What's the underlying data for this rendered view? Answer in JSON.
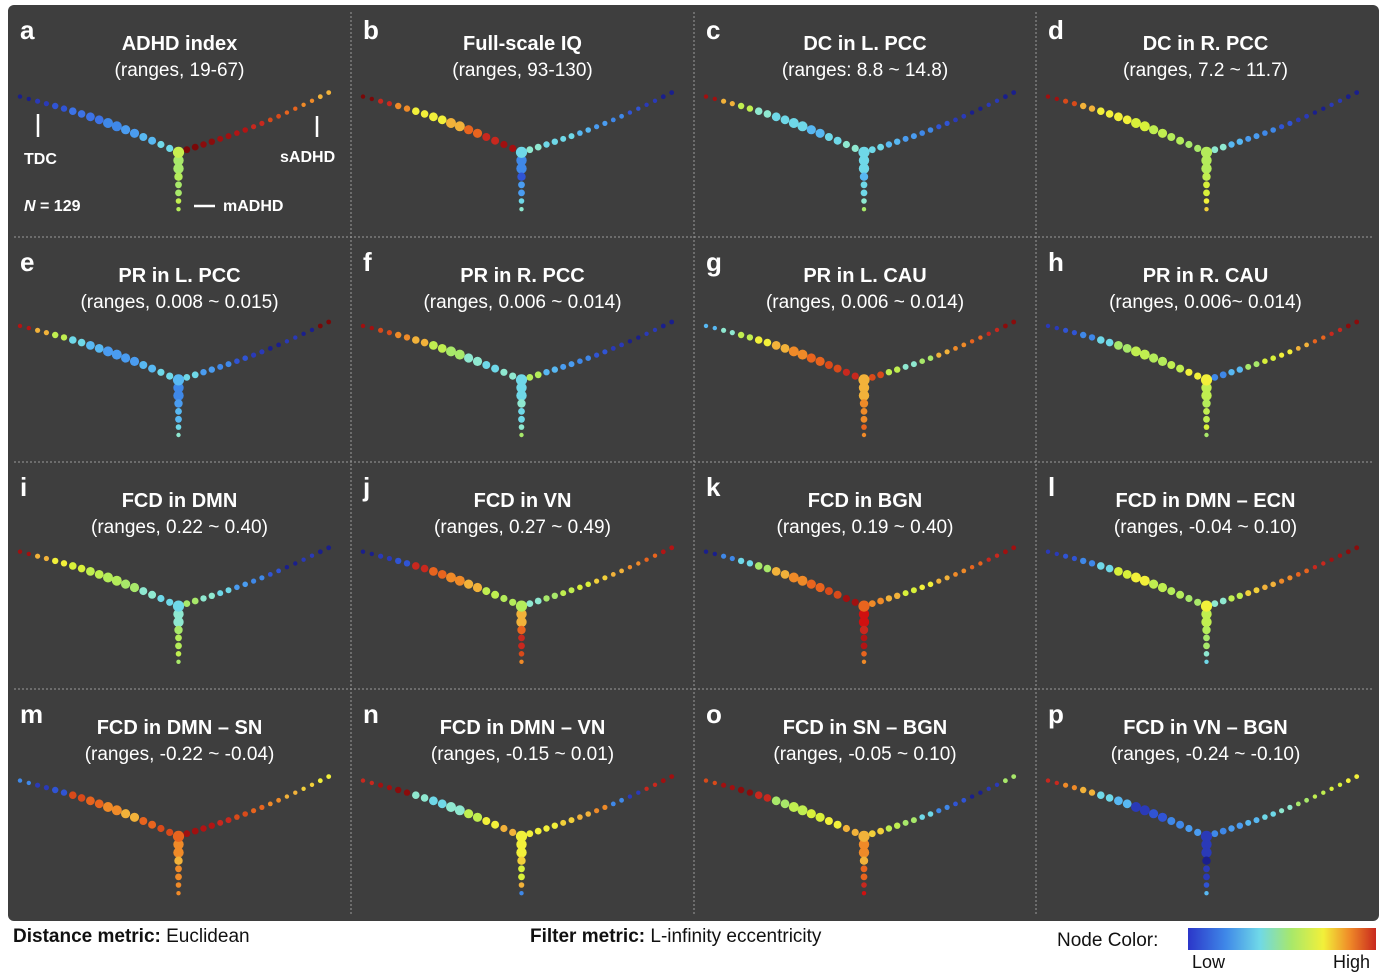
{
  "panels": [
    {
      "letter": "a",
      "title": "ADHD index",
      "subtitle": "(ranges, 19-67)",
      "left": [
        "#1a1f8c",
        "#2a3ab8",
        "#3054d4",
        "#3d73e6",
        "#3d73e6",
        "#3f88e8",
        "#4a9cf0",
        "#58b8f2",
        "#6fd8e8"
      ],
      "right": [
        "#f2b23a",
        "#ef8a28",
        "#e8641e",
        "#d84a1a",
        "#c8281e",
        "#b21414",
        "#a01010",
        "#8a0c0c",
        "#7a0808"
      ],
      "stem": [
        "#a8e86a",
        "#b4ec5a",
        "#a8e86a",
        "#c0ee50",
        "#b4ec5a"
      ],
      "junction": "#c8ee50"
    },
    {
      "letter": "b",
      "title": "Full-scale IQ",
      "subtitle": "(ranges, 93-130)",
      "left": [
        "#7a0808",
        "#c8281e",
        "#ef8a28",
        "#f2f03a",
        "#f2f03a",
        "#f2b23a",
        "#e8641e",
        "#c8281e",
        "#a01010"
      ],
      "right": [
        "#1a1f8c",
        "#2a3ab8",
        "#3054d4",
        "#3f88e8",
        "#4a9cf0",
        "#58b8f2",
        "#6fd8e8",
        "#6fd8e8",
        "#8fe8d0"
      ],
      "stem": [
        "#3f88e8",
        "#3054d4",
        "#4a9cf0",
        "#6fd8e8",
        "#8fe8d0"
      ],
      "junction": "#6fd8e8"
    },
    {
      "letter": "c",
      "title": "DC in L. PCC",
      "subtitle": "(ranges: 8.8 ~ 14.8)",
      "left": [
        "#a01010",
        "#f2b23a",
        "#c0ee50",
        "#8fe8d0",
        "#6fd8e8",
        "#6fd8e8",
        "#58b8f2",
        "#6fd8e8",
        "#8fe8d0"
      ],
      "right": [
        "#1a1f8c",
        "#2a3ab8",
        "#1a1f8c",
        "#2a3ab8",
        "#3054d4",
        "#3f88e8",
        "#4a9cf0",
        "#58b8f2",
        "#6fd8e8"
      ],
      "stem": [
        "#6fd8e8",
        "#58b8f2",
        "#6fd8e8",
        "#8fe8d0",
        "#a8e86a"
      ],
      "junction": "#6fd8e8"
    },
    {
      "letter": "d",
      "title": "DC in R. PCC",
      "subtitle": "(ranges, 7.2 ~ 11.7)",
      "left": [
        "#a01010",
        "#d84a1a",
        "#f2b23a",
        "#f2f03a",
        "#f2f03a",
        "#d8f03a",
        "#c0ee50",
        "#b4ec5a",
        "#a8e86a"
      ],
      "right": [
        "#1a1f8c",
        "#2a3ab8",
        "#1a1f8c",
        "#2a3ab8",
        "#3054d4",
        "#3f88e8",
        "#4a9cf0",
        "#58b8f2",
        "#8fe8d0"
      ],
      "stem": [
        "#b4ec5a",
        "#c0ee50",
        "#d8f03a",
        "#f2f03a",
        "#f2d03a"
      ],
      "junction": "#b4ec5a"
    },
    {
      "letter": "e",
      "title": "PR in L. PCC",
      "subtitle": "(ranges, 0.008 ~ 0.015)",
      "left": [
        "#b21414",
        "#f2b23a",
        "#c0ee50",
        "#6fd8e8",
        "#58b8f2",
        "#4a9cf0",
        "#4a9cf0",
        "#58b8f2",
        "#6fd8e8"
      ],
      "right": [
        "#7a0808",
        "#1a1f8c",
        "#2a3ab8",
        "#1a1f8c",
        "#2a3ab8",
        "#3054d4",
        "#3f88e8",
        "#4a9cf0",
        "#6fd8e8"
      ],
      "stem": [
        "#3f88e8",
        "#4a9cf0",
        "#58b8f2",
        "#6fd8e8",
        "#8fe8d0"
      ],
      "junction": "#58b8f2"
    },
    {
      "letter": "f",
      "title": "PR in R. PCC",
      "subtitle": "(ranges, 0.006 ~ 0.014)",
      "left": [
        "#a01010",
        "#d84a1a",
        "#ef8a28",
        "#f2b23a",
        "#c0ee50",
        "#a8e86a",
        "#8fe8d0",
        "#6fd8e8",
        "#8fe8d0"
      ],
      "right": [
        "#1a1f8c",
        "#2a3ab8",
        "#1a1f8c",
        "#2a3ab8",
        "#3054d4",
        "#3f88e8",
        "#4a9cf0",
        "#58b8f2",
        "#b4ec5a"
      ],
      "stem": [
        "#6fd8e8",
        "#8fe8d0",
        "#6fd8e8",
        "#8fe8d0",
        "#a8e86a"
      ],
      "junction": "#6fd8e8"
    },
    {
      "letter": "g",
      "title": "PR in L. CAU",
      "subtitle": "(ranges, 0.006 ~ 0.014)",
      "left": [
        "#58b8f2",
        "#8fe8d0",
        "#c0ee50",
        "#f2f03a",
        "#f2b23a",
        "#ef8a28",
        "#e8641e",
        "#d84a1a",
        "#c8281e"
      ],
      "right": [
        "#8a0c0c",
        "#c8281e",
        "#e8641e",
        "#ef8a28",
        "#f2b23a",
        "#a8e86a",
        "#8fe8d0",
        "#c0ee50",
        "#d84a1a"
      ],
      "stem": [
        "#f2b23a",
        "#ef8a28",
        "#ef8a28",
        "#e8641e",
        "#ef8a28"
      ],
      "junction": "#f2b23a"
    },
    {
      "letter": "h",
      "title": "PR  in R. CAU",
      "subtitle": "(ranges, 0.006~ 0.014)",
      "left": [
        "#2a3ab8",
        "#3054d4",
        "#3f88e8",
        "#6fd8e8",
        "#a8e86a",
        "#c0ee50",
        "#b4ec5a",
        "#c0ee50",
        "#f2f03a"
      ],
      "right": [
        "#8a0c0c",
        "#c8281e",
        "#e8641e",
        "#f2b23a",
        "#f2f03a",
        "#d8f03a",
        "#a8e86a",
        "#58b8f2",
        "#3f88e8"
      ],
      "stem": [
        "#c0ee50",
        "#b4ec5a",
        "#c0ee50",
        "#d8f03a",
        "#a8e86a"
      ],
      "junction": "#f2f03a"
    },
    {
      "letter": "i",
      "title": "FCD in DMN",
      "subtitle": "(ranges, 0.22 ~ 0.40)",
      "left": [
        "#a01010",
        "#f2b23a",
        "#f2f03a",
        "#d8f03a",
        "#c0ee50",
        "#b4ec5a",
        "#a8e86a",
        "#8fe8d0",
        "#6fd8e8"
      ],
      "right": [
        "#1a1f8c",
        "#2a3ab8",
        "#1a1f8c",
        "#3054d4",
        "#3f88e8",
        "#4a9cf0",
        "#6fd8e8",
        "#8fe8d0",
        "#a8e86a"
      ],
      "stem": [
        "#8fe8d0",
        "#a8e86a",
        "#b4ec5a",
        "#c0ee50",
        "#a8e86a"
      ],
      "junction": "#6fd8e8"
    },
    {
      "letter": "j",
      "title": "FCD in VN",
      "subtitle": "(ranges, 0.27 ~ 0.49)",
      "left": [
        "#1a1f8c",
        "#2a3ab8",
        "#3054d4",
        "#c8281e",
        "#e8641e",
        "#ef8a28",
        "#f2b23a",
        "#c0ee50",
        "#b4ec5a"
      ],
      "right": [
        "#b21414",
        "#e8641e",
        "#ef8a28",
        "#f2b23a",
        "#f2d03a",
        "#d8f03a",
        "#c0ee50",
        "#a8e86a",
        "#8fe8d0"
      ],
      "stem": [
        "#f2b23a",
        "#e8641e",
        "#c8281e",
        "#d84a1a",
        "#ef8a28"
      ],
      "junction": "#b4ec5a"
    },
    {
      "letter": "k",
      "title": "FCD in BGN",
      "subtitle": "(ranges, 0.19 ~ 0.40)",
      "left": [
        "#1a1f8c",
        "#3f88e8",
        "#6fd8e8",
        "#a8e86a",
        "#f2b23a",
        "#ef8a28",
        "#e8641e",
        "#d84a1a",
        "#a01010"
      ],
      "right": [
        "#a01010",
        "#c8281e",
        "#e8641e",
        "#ef8a28",
        "#f2b23a",
        "#f2f03a",
        "#d8f03a",
        "#f2b23a",
        "#ef8a28"
      ],
      "stem": [
        "#d01010",
        "#c8281e",
        "#b21414",
        "#e8641e",
        "#ef8a28"
      ],
      "junction": "#e8641e"
    },
    {
      "letter": "l",
      "title": "FCD in DMN – ECN",
      "subtitle": "(ranges, -0.04 ~ 0.10)",
      "left": [
        "#2a3ab8",
        "#3054d4",
        "#3f88e8",
        "#6fd8e8",
        "#d8f03a",
        "#f2f03a",
        "#c0ee50",
        "#b4ec5a",
        "#a8e86a"
      ],
      "right": [
        "#8a0c0c",
        "#a01010",
        "#c8281e",
        "#e8641e",
        "#ef8a28",
        "#f2b23a",
        "#f2d03a",
        "#c0ee50",
        "#8fe8d0"
      ],
      "stem": [
        "#c0ee50",
        "#b4ec5a",
        "#a8e86a",
        "#8fe8d0",
        "#6fd8e8"
      ],
      "junction": "#f2f03a"
    },
    {
      "letter": "m",
      "title": "FCD in DMN – SN",
      "subtitle": "(ranges, -0.22 ~ -0.04)",
      "left": [
        "#3f88e8",
        "#2a3ab8",
        "#3054d4",
        "#d84a1a",
        "#e8641e",
        "#ef8a28",
        "#f2b23a",
        "#e8641e",
        "#d84a1a"
      ],
      "right": [
        "#f2f03a",
        "#f2d03a",
        "#f2b23a",
        "#ef8a28",
        "#e8641e",
        "#d84a1a",
        "#c8281e",
        "#b21414",
        "#a01010"
      ],
      "stem": [
        "#ef8a28",
        "#f2b23a",
        "#ef8a28",
        "#ef8a28",
        "#ef8a28"
      ],
      "junction": "#e8641e"
    },
    {
      "letter": "n",
      "title": "FCD in DMN – VN",
      "subtitle": "(ranges, -0.15 ~ 0.01)",
      "left": [
        "#c8281e",
        "#a01010",
        "#8a0c0c",
        "#8fe8d0",
        "#6fd8e8",
        "#8fe8d0",
        "#c0ee50",
        "#f2f03a",
        "#f2b23a"
      ],
      "right": [
        "#a01010",
        "#c8281e",
        "#2a3ab8",
        "#3f88e8",
        "#ef8a28",
        "#f2b23a",
        "#f2d03a",
        "#f2f03a",
        "#f2f03a"
      ],
      "stem": [
        "#f2f03a",
        "#f2d03a",
        "#d8f03a",
        "#f2b23a",
        "#3f88e8"
      ],
      "junction": "#f2f03a"
    },
    {
      "letter": "o",
      "title": "FCD in SN – BGN",
      "subtitle": "(ranges, -0.05 ~ 0.10)",
      "left": [
        "#d84a1a",
        "#a01010",
        "#8a0c0c",
        "#c8281e",
        "#a8e86a",
        "#c0ee50",
        "#d8f03a",
        "#f2f03a",
        "#f2b23a"
      ],
      "right": [
        "#a8e86a",
        "#2a3ab8",
        "#1a1f8c",
        "#3054d4",
        "#3f88e8",
        "#6fd8e8",
        "#a8e86a",
        "#c0ee50",
        "#f2d03a"
      ],
      "stem": [
        "#ef8a28",
        "#f2b23a",
        "#e8641e",
        "#c8281e",
        "#d01010"
      ],
      "junction": "#f2b23a"
    },
    {
      "letter": "p",
      "title": "FCD in VN – BGN",
      "subtitle": "(ranges, -0.24 ~ -0.10)",
      "left": [
        "#c8281e",
        "#ef8a28",
        "#f2b23a",
        "#6fd8e8",
        "#58b8f2",
        "#2a3ab8",
        "#3054d4",
        "#3f88e8",
        "#4a9cf0"
      ],
      "right": [
        "#f2f03a",
        "#d8f03a",
        "#c0ee50",
        "#a8e86a",
        "#8fe8d0",
        "#6fd8e8",
        "#58b8f2",
        "#4a9cf0",
        "#3f88e8"
      ],
      "stem": [
        "#2a3ab8",
        "#1a1f8c",
        "#2a3ab8",
        "#3054d4",
        "#58b8f2"
      ],
      "junction": "#2a3ab8"
    }
  ],
  "annotations": {
    "tdc": "TDC",
    "sadhd": "sADHD",
    "madhd": "mADHD",
    "n_italic": "N",
    "n_value": " = 129"
  },
  "footer": {
    "distance_label": "Distance metric:",
    "distance_value": " Euclidean",
    "filter_label": "Filter metric:",
    "filter_value": " L-infinity eccentricity",
    "colorbar_title": "Node Color:",
    "low": "Low",
    "high": "High"
  }
}
